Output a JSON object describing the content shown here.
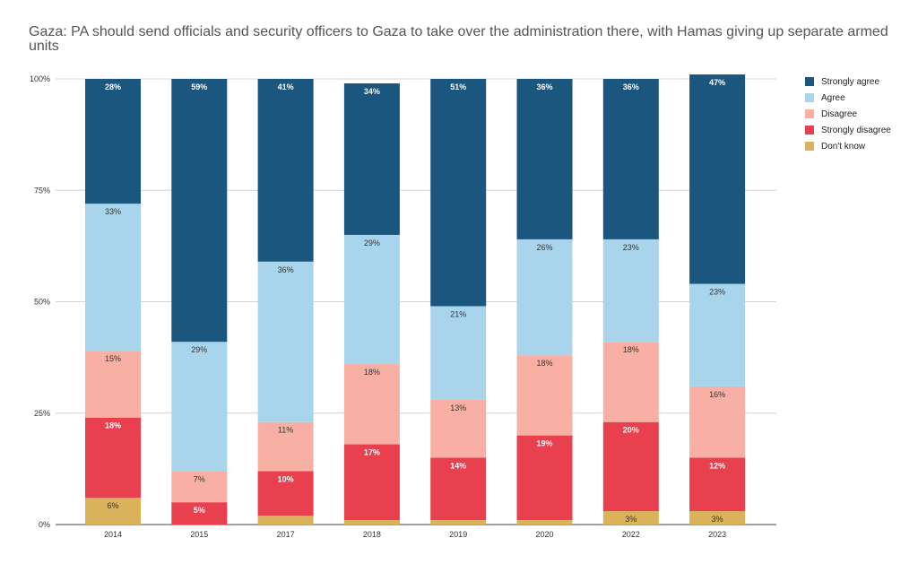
{
  "chart_data": {
    "type": "bar",
    "stacked": true,
    "title": "Gaza: PA should send officials and security officers to Gaza to take over the administration there, with Hamas giving up separate armed units",
    "xlabel": "",
    "ylabel": "",
    "ylim": [
      0,
      100
    ],
    "y_ticks": [
      "0%",
      "25%",
      "50%",
      "75%",
      "100%"
    ],
    "grid": true,
    "legend_position": "right",
    "categories": [
      "2014",
      "2015",
      "2017",
      "2018",
      "2019",
      "2020",
      "2022",
      "2023"
    ],
    "series": [
      {
        "name": "Don't know",
        "color": "#d9b25a",
        "values": [
          6,
          0,
          2,
          1,
          1,
          1,
          3,
          3
        ],
        "labels": [
          "6%",
          "",
          "",
          "",
          "",
          "",
          "3%",
          "3%"
        ]
      },
      {
        "name": "Strongly disagree",
        "color": "#e8404e",
        "values": [
          18,
          5,
          10,
          17,
          14,
          19,
          20,
          12
        ],
        "labels": [
          "18%",
          "5%",
          "10%",
          "17%",
          "14%",
          "19%",
          "20%",
          "12%"
        ]
      },
      {
        "name": "Disagree",
        "color": "#f7b0a3",
        "values": [
          15,
          7,
          11,
          18,
          13,
          18,
          18,
          16
        ],
        "labels": [
          "15%",
          "7%",
          "11%",
          "18%",
          "13%",
          "18%",
          "18%",
          "16%"
        ]
      },
      {
        "name": "Agree",
        "color": "#a8d5eb",
        "values": [
          33,
          29,
          36,
          29,
          21,
          26,
          23,
          23
        ],
        "labels": [
          "33%",
          "29%",
          "36%",
          "29%",
          "21%",
          "26%",
          "23%",
          "23%"
        ]
      },
      {
        "name": "Strongly agree",
        "color": "#1b567f",
        "values": [
          28,
          59,
          41,
          34,
          51,
          36,
          36,
          47
        ],
        "labels": [
          "28%",
          "59%",
          "41%",
          "34%",
          "51%",
          "36%",
          "36%",
          "47%"
        ]
      }
    ],
    "legend_order": [
      "Strongly agree",
      "Agree",
      "Disagree",
      "Strongly disagree",
      "Don't know"
    ]
  }
}
